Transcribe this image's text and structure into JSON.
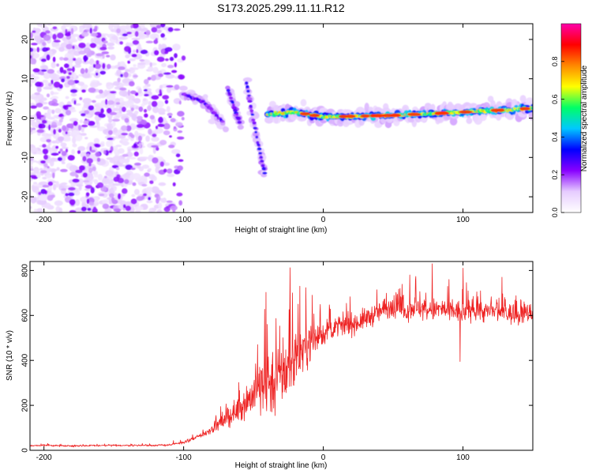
{
  "figure_title": "S173.2025.299.11.11.R12",
  "chart_data": [
    {
      "type": "heatmap",
      "title": "S173.2025.299.11.11.R12",
      "xlabel": "Height of straight line (km)",
      "ylabel": "Frequency (Hz)",
      "xlim": [
        -210,
        150
      ],
      "ylim": [
        -24,
        24
      ],
      "xticks": [
        -200,
        -100,
        0,
        100
      ],
      "yticks": [
        -20,
        -10,
        0,
        10,
        20
      ],
      "colorbar": {
        "label": "Normalized spectral amplitude",
        "range": [
          0.0,
          1.0
        ],
        "ticks": [
          0.0,
          0.2,
          0.4,
          0.6,
          0.8
        ],
        "tick_labels": [
          "0.0",
          "0.2",
          "0.4",
          "0.6",
          "0.8"
        ],
        "colormap": [
          "#ffffff",
          "#e6ccff",
          "#8800ff",
          "#0000ff",
          "#00c8ff",
          "#00ff66",
          "#ffff00",
          "#ff8800",
          "#ff0000",
          "#ff00aa"
        ]
      },
      "features": [
        {
          "name": "noise",
          "x_range": [
            -210,
            -100
          ],
          "y_range": [
            -24,
            24
          ],
          "amplitude": 0.2
        },
        {
          "name": "descending-streak-1",
          "x": [
            -100,
            -85,
            -72
          ],
          "y": [
            6,
            4,
            -1
          ],
          "amplitude": 0.3
        },
        {
          "name": "descending-streak-2",
          "x": [
            -68,
            -60
          ],
          "y": [
            7,
            -1
          ],
          "amplitude": 0.35
        },
        {
          "name": "descending-streak-3",
          "x": [
            -55,
            -47,
            -42
          ],
          "y": [
            9,
            -6,
            -14
          ],
          "amplitude": 0.35
        },
        {
          "name": "main-band",
          "x": [
            -40,
            -20,
            0,
            50,
            100,
            150
          ],
          "y": [
            1,
            1.5,
            0.3,
            0.7,
            1.5,
            2.5
          ],
          "amplitude": 0.85
        }
      ]
    },
    {
      "type": "line",
      "xlabel": "Height of straight line (km)",
      "ylabel": "SNR (10 * v/v)",
      "xlim": [
        -210,
        150
      ],
      "ylim": [
        0,
        840
      ],
      "xticks": [
        -200,
        -100,
        0,
        100
      ],
      "yticks": [
        0,
        200,
        400,
        600,
        800
      ],
      "color": "#ee2222",
      "series": [
        {
          "name": "SNR",
          "x": [
            -210,
            -200,
            -180,
            -160,
            -140,
            -120,
            -110,
            -100,
            -95,
            -90,
            -85,
            -80,
            -75,
            -70,
            -65,
            -60,
            -55,
            -50,
            -45,
            -40,
            -35,
            -30,
            -25,
            -20,
            -15,
            -10,
            -5,
            0,
            5,
            10,
            15,
            20,
            25,
            30,
            35,
            40,
            45,
            50,
            55,
            60,
            65,
            70,
            75,
            80,
            85,
            90,
            95,
            100,
            105,
            110,
            115,
            120,
            125,
            130,
            135,
            140,
            145,
            150
          ],
          "y": [
            20,
            22,
            20,
            21,
            22,
            22,
            24,
            35,
            45,
            60,
            75,
            95,
            115,
            135,
            160,
            190,
            220,
            250,
            275,
            300,
            320,
            340,
            370,
            410,
            450,
            480,
            500,
            520,
            540,
            545,
            555,
            560,
            570,
            585,
            600,
            615,
            630,
            640,
            630,
            625,
            640,
            630,
            620,
            625,
            630,
            615,
            620,
            610,
            625,
            630,
            615,
            620,
            610,
            615,
            605,
            600,
            610,
            615
          ],
          "noise": [
            5,
            5,
            5,
            5,
            5,
            5,
            6,
            8,
            10,
            14,
            18,
            25,
            35,
            45,
            60,
            75,
            100,
            130,
            170,
            200,
            210,
            220,
            200,
            170,
            140,
            110,
            80,
            70,
            60,
            55,
            55,
            60,
            60,
            60,
            60,
            60,
            65,
            65,
            65,
            65,
            65,
            65,
            65,
            65,
            65,
            65,
            65,
            60,
            60,
            60,
            60,
            60,
            60,
            60,
            60,
            55,
            55,
            55
          ],
          "peaks": [
            [
              -47,
              470
            ],
            [
              -40,
              560
            ],
            [
              -22,
              700
            ],
            [
              -18,
              650
            ],
            [
              -8,
              690
            ],
            [
              78,
              830
            ],
            [
              62,
              780
            ],
            [
              100,
              810
            ],
            [
              98,
              395
            ],
            [
              90,
              760
            ],
            [
              128,
              770
            ]
          ]
        }
      ]
    }
  ]
}
